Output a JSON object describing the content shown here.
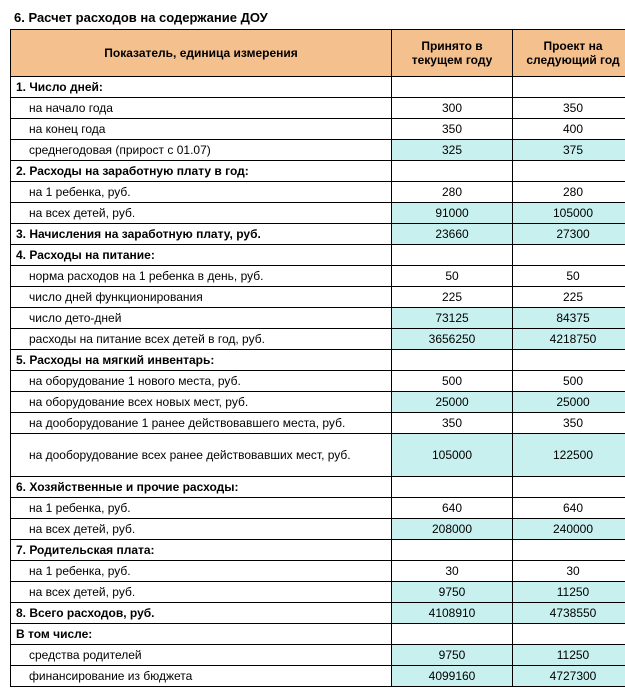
{
  "title": "6. Расчет расходов на содержание ДОУ",
  "headers": {
    "indicator": "Показатель, единица измерения",
    "col2": "Принято в текущем году",
    "col3": "Проект на следующий год"
  },
  "colors": {
    "header_bg": "#f4c08e",
    "highlight_bg": "#c7f0ee",
    "border": "#000000"
  },
  "rows": [
    {
      "label": "1. Число дней:",
      "v1": "",
      "v2": "",
      "section": true
    },
    {
      "label": "на начало года",
      "v1": "300",
      "v2": "350",
      "indent": true
    },
    {
      "label": "на конец года",
      "v1": "350",
      "v2": "400",
      "indent": true
    },
    {
      "label": "среднегодовая (прирост с 01.07)",
      "v1": "325",
      "v2": "375",
      "indent": true,
      "hl": true
    },
    {
      "label": "2. Расходы на заработную плату в год:",
      "v1": "",
      "v2": "",
      "section": true
    },
    {
      "label": "на 1 ребенка, руб.",
      "v1": "280",
      "v2": "280",
      "indent": true
    },
    {
      "label": "на всех детей, руб.",
      "v1": "91000",
      "v2": "105000",
      "indent": true,
      "hl": true
    },
    {
      "label": "3. Начисления на заработную плату, руб.",
      "v1": "23660",
      "v2": "27300",
      "section": true,
      "hl": true
    },
    {
      "label": "4. Расходы на питание:",
      "v1": "",
      "v2": "",
      "section": true
    },
    {
      "label": "норма расходов на 1 ребенка в день, руб.",
      "v1": "50",
      "v2": "50",
      "indent": true
    },
    {
      "label": "число дней функционирования",
      "v1": "225",
      "v2": "225",
      "indent": true
    },
    {
      "label": "число дето-дней",
      "v1": "73125",
      "v2": "84375",
      "indent": true,
      "hl": true
    },
    {
      "label": "расходы на питание всех детей в год, руб.",
      "v1": "3656250",
      "v2": "4218750",
      "indent": true,
      "hl": true
    },
    {
      "label": "5. Расходы на мягкий инвентарь:",
      "v1": "",
      "v2": "",
      "section": true
    },
    {
      "label": "на оборудование 1 нового места, руб.",
      "v1": "500",
      "v2": "500",
      "indent": true
    },
    {
      "label": "на оборудование всех новых мест, руб.",
      "v1": "25000",
      "v2": "25000",
      "indent": true,
      "hl": true
    },
    {
      "label": "на дооборудование 1 ранее действовавшего места, руб.",
      "v1": "350",
      "v2": "350",
      "indent": true
    },
    {
      "label": "на дооборудование всех ранее действовавших мест, руб.",
      "v1": "105000",
      "v2": "122500",
      "indent": true,
      "hl": true,
      "tall": true
    },
    {
      "label": "6. Хозяйственные и прочие расходы:",
      "v1": "",
      "v2": "",
      "section": true
    },
    {
      "label": "на 1 ребенка, руб.",
      "v1": "640",
      "v2": "640",
      "indent": true
    },
    {
      "label": "на всех детей, руб.",
      "v1": "208000",
      "v2": "240000",
      "indent": true,
      "hl": true
    },
    {
      "label": "7. Родительская плата:",
      "v1": "",
      "v2": "",
      "section": true
    },
    {
      "label": "на 1 ребенка, руб.",
      "v1": "30",
      "v2": "30",
      "indent": true
    },
    {
      "label": "на всех детей, руб.",
      "v1": "9750",
      "v2": "11250",
      "indent": true,
      "hl": true
    },
    {
      "label": "8. Всего расходов, руб.",
      "v1": "4108910",
      "v2": "4738550",
      "section": true,
      "hl": true
    },
    {
      "label": "В том числе:",
      "v1": "",
      "v2": "",
      "section": true
    },
    {
      "label": "средства родителей",
      "v1": "9750",
      "v2": "11250",
      "indent": true,
      "hl": true
    },
    {
      "label": "финансирование из бюджета",
      "v1": "4099160",
      "v2": "4727300",
      "indent": true,
      "hl": true
    }
  ]
}
